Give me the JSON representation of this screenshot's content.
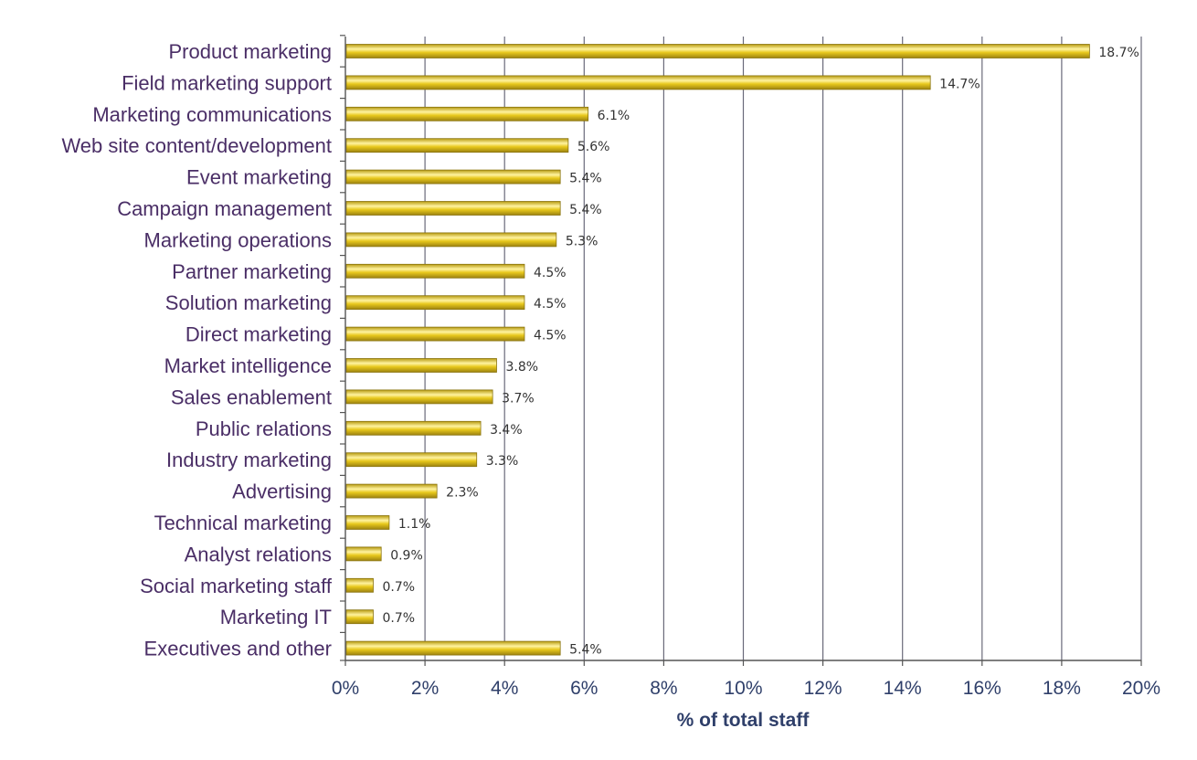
{
  "chart_data": {
    "type": "bar",
    "orientation": "horizontal",
    "categories": [
      "Product marketing",
      "Field marketing support",
      "Marketing communications",
      "Web site content/development",
      "Event marketing",
      "Campaign management",
      "Marketing operations",
      "Partner marketing",
      "Solution marketing",
      "Direct marketing",
      "Market intelligence",
      "Sales enablement",
      "Public relations",
      "Industry marketing",
      "Advertising",
      "Technical marketing",
      "Analyst relations",
      "Social marketing staff",
      "Marketing IT",
      "Executives and other"
    ],
    "values": [
      18.7,
      14.7,
      6.1,
      5.6,
      5.4,
      5.4,
      5.3,
      4.5,
      4.5,
      4.5,
      3.8,
      3.7,
      3.4,
      3.3,
      2.3,
      1.1,
      0.9,
      0.7,
      0.7,
      5.4
    ],
    "value_labels": [
      "18.7%",
      "14.7%",
      "6.1%",
      "5.6%",
      "5.4%",
      "5.4%",
      "5.3%",
      "4.5%",
      "4.5%",
      "4.5%",
      "3.8%",
      "3.7%",
      "3.4%",
      "3.3%",
      "2.3%",
      "1.1%",
      "0.9%",
      "0.7%",
      "0.7%",
      "5.4%"
    ],
    "x_ticks": [
      "0%",
      "2%",
      "4%",
      "6%",
      "8%",
      "10%",
      "12%",
      "14%",
      "16%",
      "18%",
      "20%"
    ],
    "xlim": [
      0,
      20
    ],
    "xlabel": "% of total staff",
    "ylabel": "",
    "title": "",
    "grid": true,
    "bar_color": "#e8c81c",
    "bar_edge_color": "#8a7410",
    "grid_color": "#6a6a7a"
  }
}
